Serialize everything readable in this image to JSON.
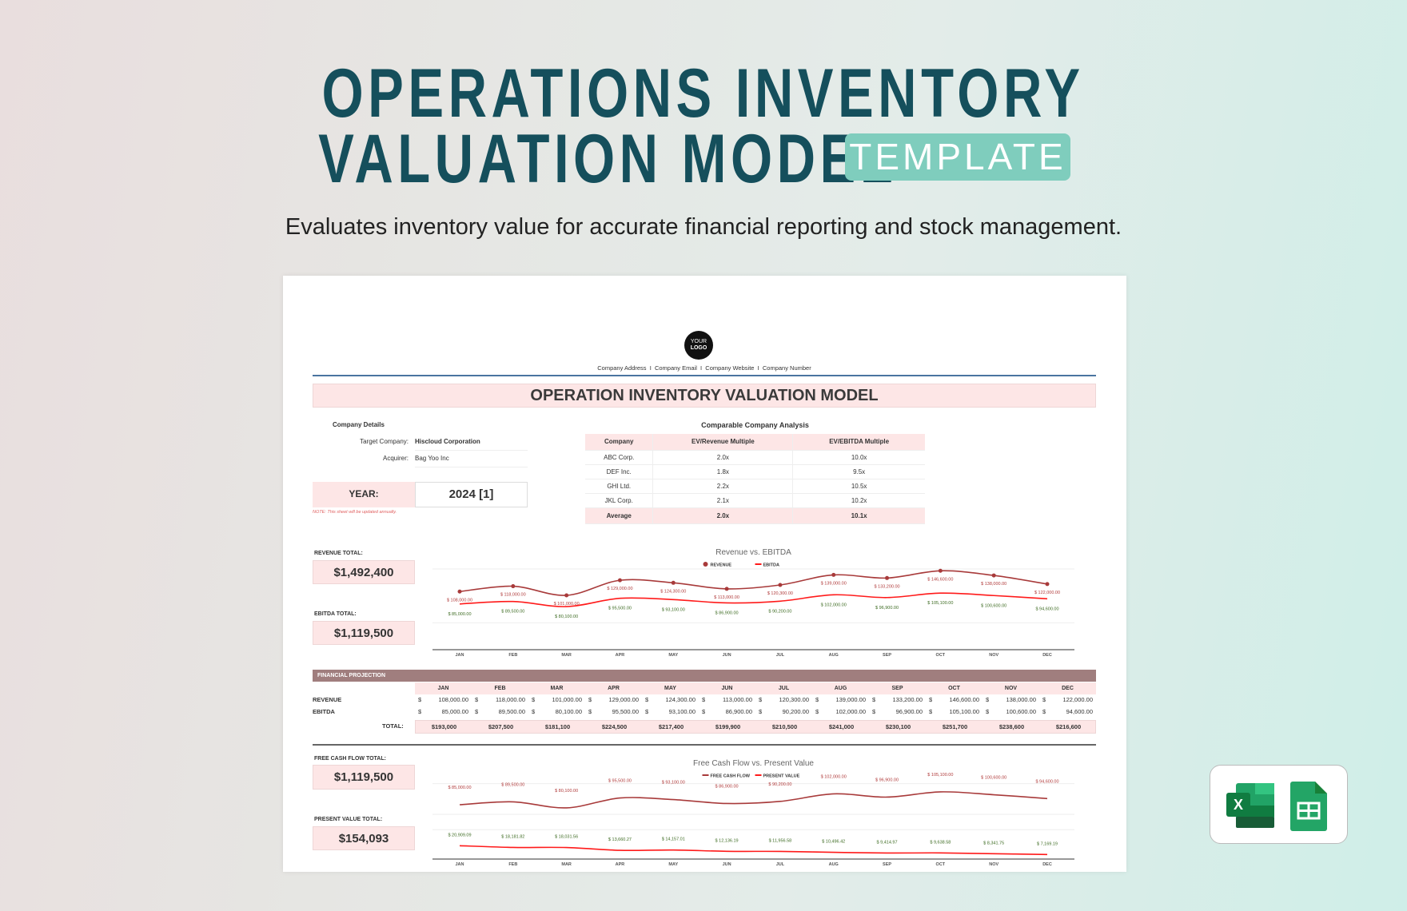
{
  "header": {
    "title_line1": "OPERATIONS INVENTORY",
    "title_line2": "VALUATION MODEL",
    "badge": "TEMPLATE",
    "subtitle": "Evaluates inventory value for accurate financial reporting and stock management."
  },
  "sheet": {
    "logo": "YOUR LOGO",
    "logo_line1": "YOUR",
    "logo_line2": "LOGO",
    "contact": "Company Address  I  Company Email  I  Company Website  I  Company Number",
    "title": "OPERATION INVENTORY VALUATION MODEL",
    "company_details": {
      "heading": "Company Details",
      "target_label": "Target Company:",
      "target_value": "Hiscloud Corporation",
      "acquirer_label": "Acquirer:",
      "acquirer_value": "Bag Yoo Inc"
    },
    "year": {
      "label": "YEAR:",
      "value": "2024 [1]",
      "note": "NOTE: This sheet will be updated annually."
    },
    "comparable": {
      "heading": "Comparable Company Analysis",
      "columns": [
        "Company",
        "EV/Revenue Multiple",
        "EV/EBITDA Multiple"
      ],
      "rows": [
        [
          "ABC Corp.",
          "2.0x",
          "10.0x"
        ],
        [
          "DEF Inc.",
          "1.8x",
          "9.5x"
        ],
        [
          "GHI Ltd.",
          "2.2x",
          "10.5x"
        ],
        [
          "JKL Corp.",
          "2.1x",
          "10.2x"
        ]
      ],
      "average": [
        "Average",
        "2.0x",
        "10.1x"
      ]
    },
    "totals": {
      "revenue_label": "REVENUE TOTAL:",
      "revenue": "$1,492,400",
      "ebitda_label": "EBITDA TOTAL:",
      "ebitda": "$1,119,500",
      "fcf_label": "FREE CASH FLOW TOTAL:",
      "fcf": "$1,119,500",
      "pv_label": "PRESENT VALUE TOTAL:",
      "pv": "$154,093"
    },
    "projection": {
      "heading": "FINANCIAL PROJECTION",
      "revenue_label": "REVENUE",
      "ebitda_label": "EBITDA",
      "total_label": "TOTAL:",
      "currency": "$",
      "revenue": [
        "108,000.00",
        "118,000.00",
        "101,000.00",
        "129,000.00",
        "124,300.00",
        "113,000.00",
        "120,300.00",
        "139,000.00",
        "133,200.00",
        "146,600.00",
        "138,000.00",
        "122,000.00"
      ],
      "ebitda": [
        "85,000.00",
        "89,500.00",
        "80,100.00",
        "95,500.00",
        "93,100.00",
        "86,900.00",
        "90,200.00",
        "102,000.00",
        "96,900.00",
        "105,100.00",
        "100,600.00",
        "94,600.00"
      ],
      "total": [
        "$193,000",
        "$207,500",
        "$181,100",
        "$224,500",
        "$217,400",
        "$199,900",
        "$210,500",
        "$241,000",
        "$230,100",
        "$251,700",
        "$238,600",
        "$216,600"
      ]
    }
  },
  "icons": [
    "excel-icon",
    "google-sheets-icon"
  ],
  "colors": {
    "title": "#154f5c",
    "badge": "#7fcdbd",
    "pink": "#fde6e6",
    "projection_bar": "#a07e7e",
    "series_dark": "#a83a3a",
    "series_bright": "#ff1a1a",
    "label_green": "#3d6b22"
  },
  "chart_data": [
    {
      "type": "line",
      "title": "Revenue vs. EBITDA",
      "categories": [
        "JAN",
        "FEB",
        "MAR",
        "APR",
        "MAY",
        "JUN",
        "JUL",
        "AUG",
        "SEP",
        "OCT",
        "NOV",
        "DEC"
      ],
      "ylim": [
        0,
        150000
      ],
      "series": [
        {
          "name": "REVENUE",
          "values": [
            108000,
            118000,
            101000,
            129000,
            124300,
            113000,
            120300,
            139000,
            133200,
            146600,
            138000,
            122000
          ],
          "labels": [
            "$ 108,000.00",
            "$ 118,000.00",
            "$ 101,000.00",
            "$ 129,000.00",
            "$ 124,300.00",
            "$ 113,000.00",
            "$ 120,300.00",
            "$ 139,000.00",
            "$ 133,200.00",
            "$ 146,600.00",
            "$ 138,000.00",
            "$ 122,000.00"
          ]
        },
        {
          "name": "EBITDA",
          "values": [
            85000,
            89500,
            80100,
            95500,
            93100,
            86900,
            90200,
            102000,
            96900,
            105100,
            100600,
            94600
          ],
          "labels": [
            "$ 85,000.00",
            "$ 89,500.00",
            "$ 80,100.00",
            "$ 95,500.00",
            "$ 93,100.00",
            "$ 86,900.00",
            "$ 90,200.00",
            "$ 102,000.00",
            "$ 96,900.00",
            "$ 105,100.00",
            "$ 100,600.00",
            "$ 94,600.00"
          ]
        }
      ]
    },
    {
      "type": "line",
      "title": "Free Cash Flow vs. Present Value",
      "categories": [
        "JAN",
        "FEB",
        "MAR",
        "APR",
        "MAY",
        "JUN",
        "JUL",
        "AUG",
        "SEP",
        "OCT",
        "NOV",
        "DEC"
      ],
      "ylim": [
        0,
        120000
      ],
      "series": [
        {
          "name": "FREE CASH FLOW",
          "values": [
            85000,
            89500,
            80100,
            95500,
            93100,
            86900,
            90200,
            102000,
            96900,
            105100,
            100600,
            94600
          ],
          "labels": [
            "$ 85,000.00",
            "$ 89,500.00",
            "$ 80,100.00",
            "$ 95,500.00",
            "$ 93,100.00",
            "$ 86,900.00",
            "$ 90,200.00",
            "$ 102,000.00",
            "$ 96,900.00",
            "$ 105,100.00",
            "$ 100,600.00",
            "$ 94,600.00"
          ]
        },
        {
          "name": "PRESENT VALUE",
          "values": [
            20909.09,
            18181.82,
            18031.56,
            13660.27,
            14157.01,
            12136.19,
            11956.58,
            10496.42,
            9414.97,
            9638.58,
            8341.75,
            7169.19
          ],
          "labels": [
            "$ 20,909.09",
            "$ 18,181.82",
            "$ 18,031.56",
            "$ 13,660.27",
            "$ 14,157.01",
            "$ 12,136.19",
            "$ 11,956.58",
            "$ 10,496.42",
            "$ 9,414.97",
            "$ 9,638.58",
            "$ 8,341.75",
            "$ 7,169.19"
          ]
        }
      ]
    }
  ]
}
